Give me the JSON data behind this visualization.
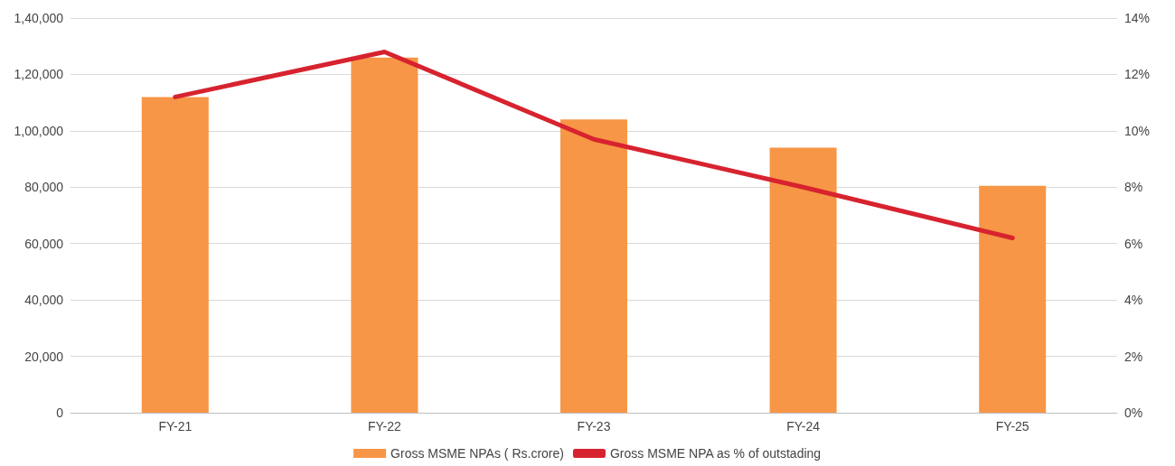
{
  "chart_data": {
    "type": "bar",
    "categories": [
      "FY-21",
      "FY-22",
      "FY-23",
      "FY-24",
      "FY-25"
    ],
    "series": [
      {
        "name": "Gross MSME NPAs ( Rs.crore)",
        "color": "#f79646",
        "values": [
          112000,
          126000,
          104000,
          94000,
          80500
        ]
      },
      {
        "name": "Gross MSME NPA as % of outstading",
        "type": "line",
        "axis": "y2",
        "color": "#d7232f",
        "values": [
          11.2,
          12.8,
          9.7,
          8.0,
          6.2
        ]
      }
    ],
    "ylim": [
      0,
      140000
    ],
    "yticks": [
      0,
      {
        "value": 20000,
        "label": "20,000"
      },
      {
        "value": 40000,
        "label": "40,000"
      },
      {
        "value": 60000,
        "label": "60,000"
      },
      {
        "value": 80000,
        "label": "80,000"
      },
      {
        "value": 100000,
        "label": "1,00,000"
      },
      {
        "value": 120000,
        "label": "1,20,000"
      },
      {
        "value": 140000,
        "label": "1,40,000"
      }
    ],
    "y2lim": [
      0,
      14
    ],
    "y2ticks": [
      {
        "value": 0,
        "label": "0%"
      },
      {
        "value": 2,
        "label": "2%"
      },
      {
        "value": 4,
        "label": "4%"
      },
      {
        "value": 6,
        "label": "6%"
      },
      {
        "value": 8,
        "label": "8%"
      },
      {
        "value": 10,
        "label": "10%"
      },
      {
        "value": 12,
        "label": "12%"
      },
      {
        "value": 14,
        "label": "14%"
      }
    ],
    "grid": "y",
    "legend": "bottom",
    "marker": "none",
    "line_style": "solid"
  }
}
